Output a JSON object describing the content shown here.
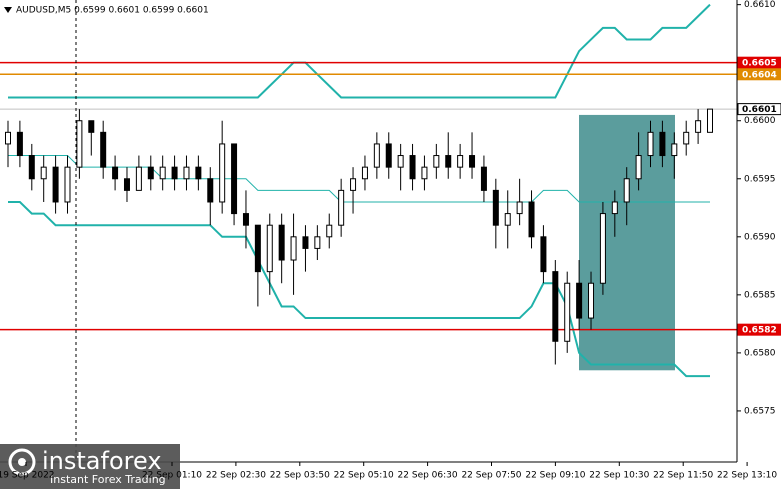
{
  "chart_data": {
    "type": "candlestick",
    "title": "AUDUSD,M5  0.6599 0.6601 0.6599 0.6601",
    "ylim": [
      0.65706,
      0.66104
    ],
    "yticks": [
      {
        "value": 0.661,
        "label": "0.6610"
      },
      {
        "value": 0.66,
        "label": "0.6600"
      },
      0.6595,
      {
        "value": 0.659,
        "label": "0.6590"
      },
      0.6585,
      {
        "value": 0.658,
        "label": "0.6580"
      },
      0.6575
    ],
    "x_labels": [
      "19 Sep 2022",
      "22 Sep 01:10",
      "22 Sep 02:30",
      "22 Sep 03:50",
      "22 Sep 05:10",
      "22 Sep 06:30",
      "22 Sep 07:50",
      "22 Sep 09:10",
      "22 Sep 10:30",
      "22 Sep 11:50",
      "22 Sep 13:10"
    ],
    "candles": [
      [
        0.6598,
        0.66,
        0.6596,
        0.6599
      ],
      [
        0.6599,
        0.66,
        0.6596,
        0.6597
      ],
      [
        0.6597,
        0.6598,
        0.6594,
        0.6595
      ],
      [
        0.6595,
        0.6597,
        0.6593,
        0.6596
      ],
      [
        0.6596,
        0.6597,
        0.6592,
        0.6593
      ],
      [
        0.6593,
        0.6597,
        0.6592,
        0.6596
      ],
      [
        0.6596,
        0.6601,
        0.6595,
        0.66
      ],
      [
        0.66,
        0.66,
        0.6597,
        0.6599
      ],
      [
        0.6599,
        0.66,
        0.6595,
        0.6596
      ],
      [
        0.6596,
        0.6597,
        0.6594,
        0.6595
      ],
      [
        0.6595,
        0.6596,
        0.6593,
        0.6594
      ],
      [
        0.6594,
        0.6597,
        0.6594,
        0.6596
      ],
      [
        0.6596,
        0.6597,
        0.6594,
        0.6595
      ],
      [
        0.6595,
        0.6597,
        0.6594,
        0.6596
      ],
      [
        0.6596,
        0.6597,
        0.6594,
        0.6595
      ],
      [
        0.6595,
        0.6597,
        0.6594,
        0.6596
      ],
      [
        0.6596,
        0.6597,
        0.6594,
        0.6595
      ],
      [
        0.6595,
        0.6596,
        0.6591,
        0.6593
      ],
      [
        0.6593,
        0.66,
        0.6592,
        0.6598
      ],
      [
        0.6598,
        0.6598,
        0.6591,
        0.6592
      ],
      [
        0.6592,
        0.6594,
        0.6589,
        0.6591
      ],
      [
        0.6591,
        0.6591,
        0.6584,
        0.6587
      ],
      [
        0.6587,
        0.6592,
        0.6585,
        0.6591
      ],
      [
        0.6591,
        0.6592,
        0.6586,
        0.6588
      ],
      [
        0.6588,
        0.6592,
        0.6585,
        0.659
      ],
      [
        0.659,
        0.6591,
        0.6587,
        0.6589
      ],
      [
        0.6589,
        0.6591,
        0.6588,
        0.659
      ],
      [
        0.659,
        0.6592,
        0.6589,
        0.6591
      ],
      [
        0.6591,
        0.6595,
        0.659,
        0.6594
      ],
      [
        0.6594,
        0.6596,
        0.6592,
        0.6595
      ],
      [
        0.6595,
        0.6597,
        0.6594,
        0.6596
      ],
      [
        0.6596,
        0.6599,
        0.6595,
        0.6598
      ],
      [
        0.6598,
        0.6599,
        0.6595,
        0.6596
      ],
      [
        0.6596,
        0.6598,
        0.6594,
        0.6597
      ],
      [
        0.6597,
        0.6598,
        0.6594,
        0.6595
      ],
      [
        0.6595,
        0.6597,
        0.6594,
        0.6596
      ],
      [
        0.6596,
        0.6598,
        0.6595,
        0.6597
      ],
      [
        0.6597,
        0.6599,
        0.6595,
        0.6596
      ],
      [
        0.6596,
        0.6598,
        0.6595,
        0.6597
      ],
      [
        0.6597,
        0.6599,
        0.6595,
        0.6596
      ],
      [
        0.6596,
        0.6597,
        0.6593,
        0.6594
      ],
      [
        0.6594,
        0.6595,
        0.6589,
        0.6591
      ],
      [
        0.6591,
        0.6594,
        0.6589,
        0.6592
      ],
      [
        0.6592,
        0.6595,
        0.6591,
        0.6593
      ],
      [
        0.6593,
        0.6594,
        0.6589,
        0.659
      ],
      [
        0.659,
        0.6591,
        0.6586,
        0.6587
      ],
      [
        0.6587,
        0.6588,
        0.6579,
        0.6581
      ],
      [
        0.6581,
        0.6587,
        0.658,
        0.6586
      ],
      [
        0.6586,
        0.6588,
        0.6582,
        0.6583
      ],
      [
        0.6583,
        0.6587,
        0.6582,
        0.6586
      ],
      [
        0.6586,
        0.6593,
        0.6585,
        0.6592
      ],
      [
        0.6592,
        0.6594,
        0.659,
        0.6593
      ],
      [
        0.6593,
        0.6596,
        0.6591,
        0.6595
      ],
      [
        0.6595,
        0.6599,
        0.6594,
        0.6597
      ],
      [
        0.6597,
        0.66,
        0.6596,
        0.6599
      ],
      [
        0.6599,
        0.66,
        0.6596,
        0.6597
      ],
      [
        0.6597,
        0.6599,
        0.6595,
        0.6598
      ],
      [
        0.6598,
        0.66,
        0.6597,
        0.6599
      ],
      [
        0.6599,
        0.6601,
        0.6598,
        0.66
      ],
      [
        0.6599,
        0.6601,
        0.6599,
        0.6601
      ]
    ],
    "bands": [
      {
        "color": "#20b2aa",
        "values": [
          0.6602,
          0.6602,
          0.6602,
          0.6602,
          0.6602,
          0.6602,
          0.6602,
          0.6602,
          0.6602,
          0.6602,
          0.6602,
          0.6602,
          0.6602,
          0.6602,
          0.6602,
          0.6602,
          0.6602,
          0.6602,
          0.6602,
          0.6602,
          0.6602,
          0.6602,
          0.6603,
          0.6604,
          0.6605,
          0.6605,
          0.6604,
          0.6603,
          0.6602,
          0.6602,
          0.6602,
          0.6602,
          0.6602,
          0.6602,
          0.6602,
          0.6602,
          0.6602,
          0.6602,
          0.6602,
          0.6602,
          0.6602,
          0.6602,
          0.6602,
          0.6602,
          0.6602,
          0.6602,
          0.6602,
          0.6604,
          0.6606,
          0.6607,
          0.6608,
          0.6608,
          0.6607,
          0.6607,
          0.6607,
          0.6608,
          0.6608,
          0.6608,
          0.6609,
          0.661
        ]
      },
      {
        "color": "#20b2aa",
        "values": [
          0.6597,
          0.6597,
          0.6597,
          0.6597,
          0.6597,
          0.6597,
          0.6596,
          0.6596,
          0.6596,
          0.6596,
          0.6596,
          0.6596,
          0.6596,
          0.6595,
          0.6595,
          0.6595,
          0.6595,
          0.6595,
          0.6595,
          0.6595,
          0.6595,
          0.6594,
          0.6594,
          0.6594,
          0.6594,
          0.6594,
          0.6594,
          0.6594,
          0.6593,
          0.6593,
          0.6593,
          0.6593,
          0.6593,
          0.6593,
          0.6593,
          0.6593,
          0.6593,
          0.6593,
          0.6593,
          0.6593,
          0.6593,
          0.6593,
          0.6593,
          0.6593,
          0.6593,
          0.6594,
          0.6594,
          0.6594,
          0.6593,
          0.6593,
          0.6593,
          0.6593,
          0.6593,
          0.6593,
          0.6593,
          0.6593,
          0.6593,
          0.6593,
          0.6593,
          0.6593
        ]
      },
      {
        "color": "#20b2aa",
        "values": [
          0.6593,
          0.6593,
          0.6592,
          0.6592,
          0.6591,
          0.6591,
          0.6591,
          0.6591,
          0.6591,
          0.6591,
          0.6591,
          0.6591,
          0.6591,
          0.6591,
          0.6591,
          0.6591,
          0.6591,
          0.6591,
          0.659,
          0.659,
          0.659,
          0.6588,
          0.6586,
          0.6584,
          0.6584,
          0.6583,
          0.6583,
          0.6583,
          0.6583,
          0.6583,
          0.6583,
          0.6583,
          0.6583,
          0.6583,
          0.6583,
          0.6583,
          0.6583,
          0.6583,
          0.6583,
          0.6583,
          0.6583,
          0.6583,
          0.6583,
          0.6583,
          0.6584,
          0.6586,
          0.6586,
          0.6584,
          0.658,
          0.6579,
          0.6579,
          0.6579,
          0.6579,
          0.6579,
          0.6579,
          0.6579,
          0.6579,
          0.6578,
          0.6578,
          0.6578
        ]
      }
    ],
    "levels": [
      {
        "value": 0.6605,
        "color": "#e00000"
      },
      {
        "value": 0.6604,
        "color": "#e08a00"
      },
      {
        "value": 0.6582,
        "color": "#e00000"
      }
    ],
    "current_price": 0.6601,
    "zone": {
      "high": 0.66005,
      "low": 0.65785,
      "color": "#3e8c8c"
    }
  },
  "watermark": {
    "brand": "instaforex",
    "tagline": "Instant Forex Trading"
  }
}
